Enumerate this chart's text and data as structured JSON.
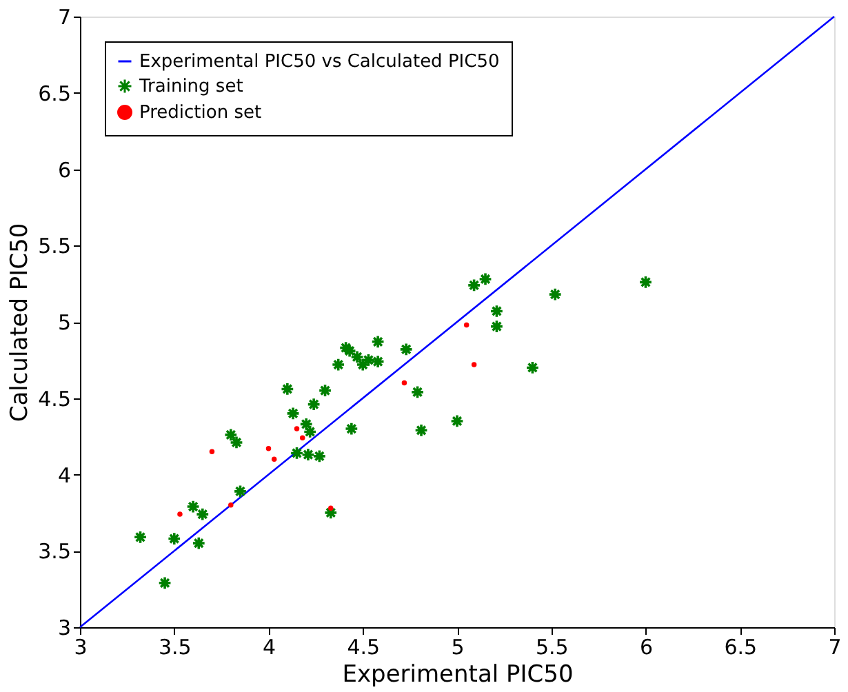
{
  "chart_data": {
    "type": "scatter",
    "xlabel": "Experimental PIC50",
    "ylabel": "Calculated PIC50",
    "xlim": [
      3,
      7
    ],
    "ylim": [
      3,
      7
    ],
    "xticks": [
      3,
      3.5,
      4,
      4.5,
      5,
      5.5,
      6,
      6.5,
      7
    ],
    "yticks": [
      3,
      3.5,
      4,
      4.5,
      5,
      5.5,
      6,
      6.5,
      7
    ],
    "grid": false,
    "legend": "top left",
    "series": [
      {
        "name": "Experimental PIC50 vs Calculated PIC50",
        "type": "line",
        "color": "#0000ff",
        "line_style": "solid",
        "marker": "none",
        "x": [
          3,
          7
        ],
        "values": [
          3,
          7
        ]
      },
      {
        "name": "Training set",
        "type": "scatter",
        "color": "#008000",
        "marker": "cross",
        "x": [
          3.32,
          3.45,
          3.5,
          3.6,
          3.63,
          3.65,
          3.8,
          3.83,
          3.85,
          4.1,
          4.13,
          4.15,
          4.2,
          4.21,
          4.22,
          4.24,
          4.27,
          4.3,
          4.33,
          4.37,
          4.41,
          4.43,
          4.44,
          4.47,
          4.5,
          4.53,
          4.58,
          4.58,
          4.73,
          4.79,
          4.81,
          5.0,
          5.09,
          5.15,
          5.21,
          5.21,
          5.4,
          5.52,
          6.0
        ],
        "values": [
          3.59,
          3.29,
          3.58,
          3.79,
          3.55,
          3.74,
          4.26,
          4.21,
          3.89,
          4.56,
          4.4,
          4.14,
          4.33,
          4.13,
          4.28,
          4.46,
          4.12,
          4.55,
          3.75,
          4.72,
          4.83,
          4.81,
          4.3,
          4.77,
          4.72,
          4.75,
          4.87,
          4.74,
          4.82,
          4.54,
          4.29,
          4.35,
          5.24,
          5.28,
          5.07,
          4.97,
          4.7,
          5.18,
          5.26
        ]
      },
      {
        "name": "Prediction set",
        "type": "scatter",
        "color": "#ff0000",
        "marker": "circle",
        "x": [
          3.53,
          3.7,
          3.8,
          4.0,
          4.03,
          4.15,
          4.18,
          4.33,
          4.72,
          5.05,
          5.09
        ],
        "values": [
          3.74,
          4.15,
          3.8,
          4.17,
          4.1,
          4.3,
          4.24,
          3.78,
          4.6,
          4.98,
          4.72
        ]
      }
    ]
  }
}
